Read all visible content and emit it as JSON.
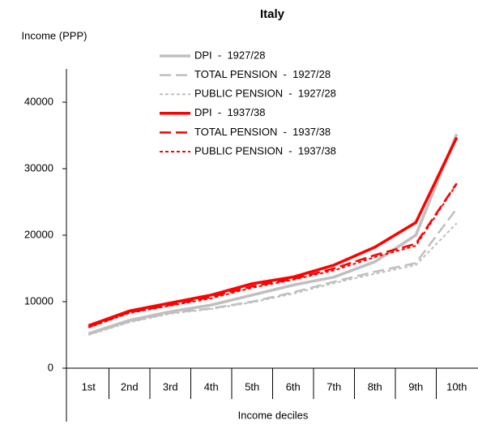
{
  "chart_data": {
    "type": "line",
    "title": "Italy",
    "y_label": "Income (PPP)",
    "x_label": "Income deciles",
    "categories": [
      "1st",
      "2nd",
      "3rd",
      "4th",
      "5th",
      "6th",
      "7th",
      "8th",
      "9th",
      "10th"
    ],
    "ylim": [
      0,
      45000
    ],
    "yticks": [
      0,
      10000,
      20000,
      30000,
      40000
    ],
    "legend": "top-left",
    "series": [
      {
        "name": "DPI  -  1927/28",
        "color": "#bfbfbf",
        "style": "solid",
        "values": [
          5200,
          7200,
          8500,
          9500,
          11000,
          12500,
          13700,
          16000,
          20000,
          35200
        ]
      },
      {
        "name": "TOTAL PENSION  -  1927/28",
        "color": "#bfbfbf",
        "style": "dashed",
        "values": [
          5100,
          7000,
          8300,
          9000,
          10000,
          11400,
          13000,
          14500,
          15800,
          24000
        ]
      },
      {
        "name": "PUBLIC PENSION  -  1927/28",
        "color": "#bfbfbf",
        "style": "dotted",
        "values": [
          5000,
          6900,
          8200,
          8900,
          9900,
          11200,
          12800,
          14200,
          15500,
          21800
        ]
      },
      {
        "name": "DPI  -  1937/38",
        "color": "#ff0000",
        "style": "solid",
        "values": [
          6400,
          8600,
          9800,
          11000,
          12700,
          13700,
          15500,
          18200,
          21900,
          34700
        ]
      },
      {
        "name": "TOTAL PENSION  -  1937/38",
        "color": "#ff0000",
        "style": "dashed",
        "values": [
          6200,
          8400,
          9500,
          10700,
          12300,
          13400,
          15000,
          17000,
          18700,
          27800
        ]
      },
      {
        "name": "PUBLIC PENSION  -  1937/38",
        "color": "#ff0000",
        "style": "dotted",
        "values": [
          6100,
          8300,
          9400,
          10500,
          12100,
          13300,
          14700,
          16700,
          18400,
          27700
        ]
      }
    ]
  }
}
